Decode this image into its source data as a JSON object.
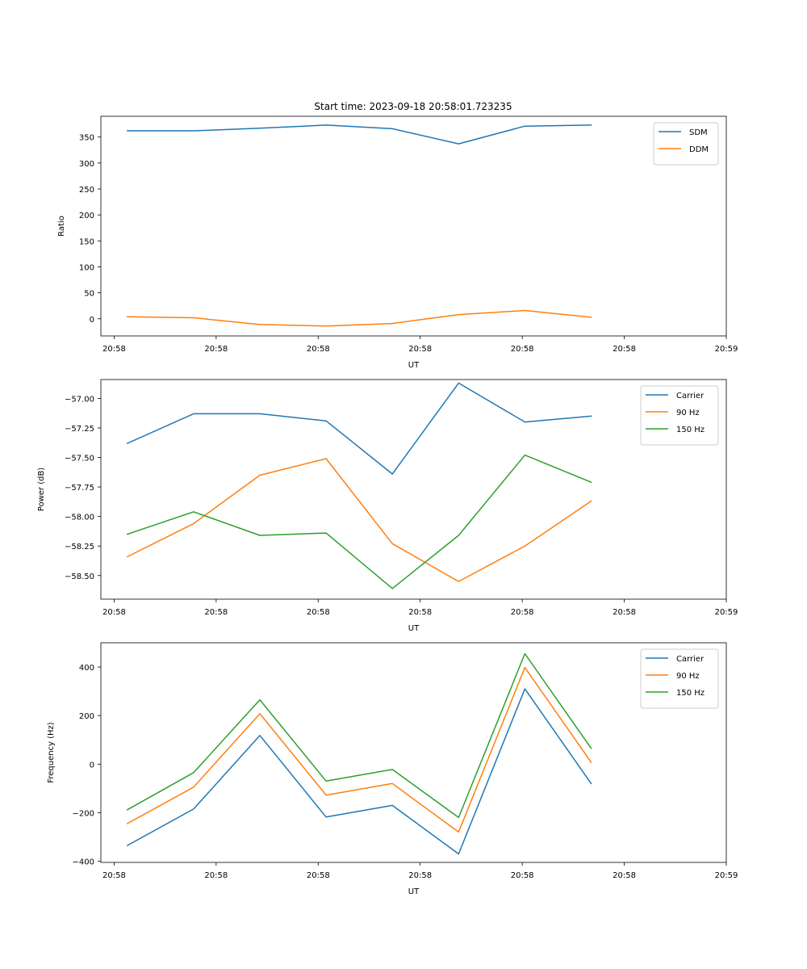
{
  "figure_title": "Start time: 2023-09-18 20:58:01.723235",
  "chart_data": [
    {
      "type": "line",
      "title": "Start time: 2023-09-18 20:58:01.723235",
      "xlabel": "UT",
      "ylabel": "Ratio",
      "x_tick_labels": [
        "20:58",
        "20:58",
        "20:58",
        "20:58",
        "20:58",
        "20:58",
        "20:59"
      ],
      "x_ticks_index": [
        -0.2,
        1.34,
        2.88,
        4.42,
        5.96,
        7.5,
        9.04
      ],
      "x_index_range": [
        -0.4,
        9.04
      ],
      "x": [
        0,
        1,
        2,
        3,
        4,
        5,
        6,
        7
      ],
      "ylim": [
        -33,
        390
      ],
      "y_ticks": [
        0,
        50,
        100,
        150,
        200,
        250,
        300,
        350
      ],
      "series": [
        {
          "name": "SDM",
          "color": "#1f77b4",
          "values": [
            362,
            362,
            367,
            373,
            366,
            337,
            371,
            373
          ]
        },
        {
          "name": "DDM",
          "color": "#ff7f0e",
          "values": [
            4,
            2,
            -11,
            -14,
            -9,
            8,
            16,
            3
          ]
        }
      ],
      "legend": "top-right"
    },
    {
      "type": "line",
      "title": "",
      "xlabel": "UT",
      "ylabel": "Power (dB)",
      "x_tick_labels": [
        "20:58",
        "20:58",
        "20:58",
        "20:58",
        "20:58",
        "20:58",
        "20:59"
      ],
      "x_ticks_index": [
        -0.2,
        1.34,
        2.88,
        4.42,
        5.96,
        7.5,
        9.04
      ],
      "x_index_range": [
        -0.4,
        9.04
      ],
      "x": [
        0,
        1,
        2,
        3,
        4,
        5,
        6,
        7
      ],
      "ylim": [
        -58.7,
        -56.84
      ],
      "y_ticks": [
        -58.5,
        -58.25,
        -58.0,
        -57.75,
        -57.5,
        -57.25,
        -57.0
      ],
      "y_tick_labels": [
        "−58.50",
        "−58.25",
        "−58.00",
        "−57.75",
        "−57.50",
        "−57.25",
        "−57.00"
      ],
      "series": [
        {
          "name": "Carrier",
          "color": "#1f77b4",
          "values": [
            -57.38,
            -57.13,
            -57.13,
            -57.19,
            -57.64,
            -56.87,
            -57.2,
            -57.15
          ]
        },
        {
          "name": "90 Hz",
          "color": "#ff7f0e",
          "values": [
            -58.34,
            -58.06,
            -57.65,
            -57.51,
            -58.23,
            -58.55,
            -58.25,
            -57.87
          ]
        },
        {
          "name": "150 Hz",
          "color": "#2ca02c",
          "values": [
            -58.15,
            -57.96,
            -58.16,
            -58.14,
            -58.61,
            -58.16,
            -57.48,
            -57.71
          ]
        }
      ],
      "legend": "top-right"
    },
    {
      "type": "line",
      "title": "",
      "xlabel": "UT",
      "ylabel": "Frequency (Hz)",
      "x_tick_labels": [
        "20:58",
        "20:58",
        "20:58",
        "20:58",
        "20:58",
        "20:58",
        "20:59"
      ],
      "x_ticks_index": [
        -0.2,
        1.34,
        2.88,
        4.42,
        5.96,
        7.5,
        9.04
      ],
      "x_index_range": [
        -0.4,
        9.04
      ],
      "x": [
        0,
        1,
        2,
        3,
        4,
        5,
        6,
        7
      ],
      "ylim": [
        -405,
        500
      ],
      "y_ticks": [
        -400,
        -200,
        0,
        200,
        400
      ],
      "y_tick_labels": [
        "−400",
        "−200",
        "0",
        "200",
        "400"
      ],
      "series": [
        {
          "name": "Carrier",
          "color": "#1f77b4",
          "values": [
            -335,
            -185,
            118,
            -218,
            -170,
            -370,
            310,
            -80
          ]
        },
        {
          "name": "90 Hz",
          "color": "#ff7f0e",
          "values": [
            -245,
            -95,
            208,
            -128,
            -80,
            -280,
            398,
            8
          ]
        },
        {
          "name": "150 Hz",
          "color": "#2ca02c",
          "values": [
            -188,
            -35,
            265,
            -70,
            -22,
            -220,
            455,
            65
          ]
        }
      ],
      "legend": "top-right"
    }
  ]
}
